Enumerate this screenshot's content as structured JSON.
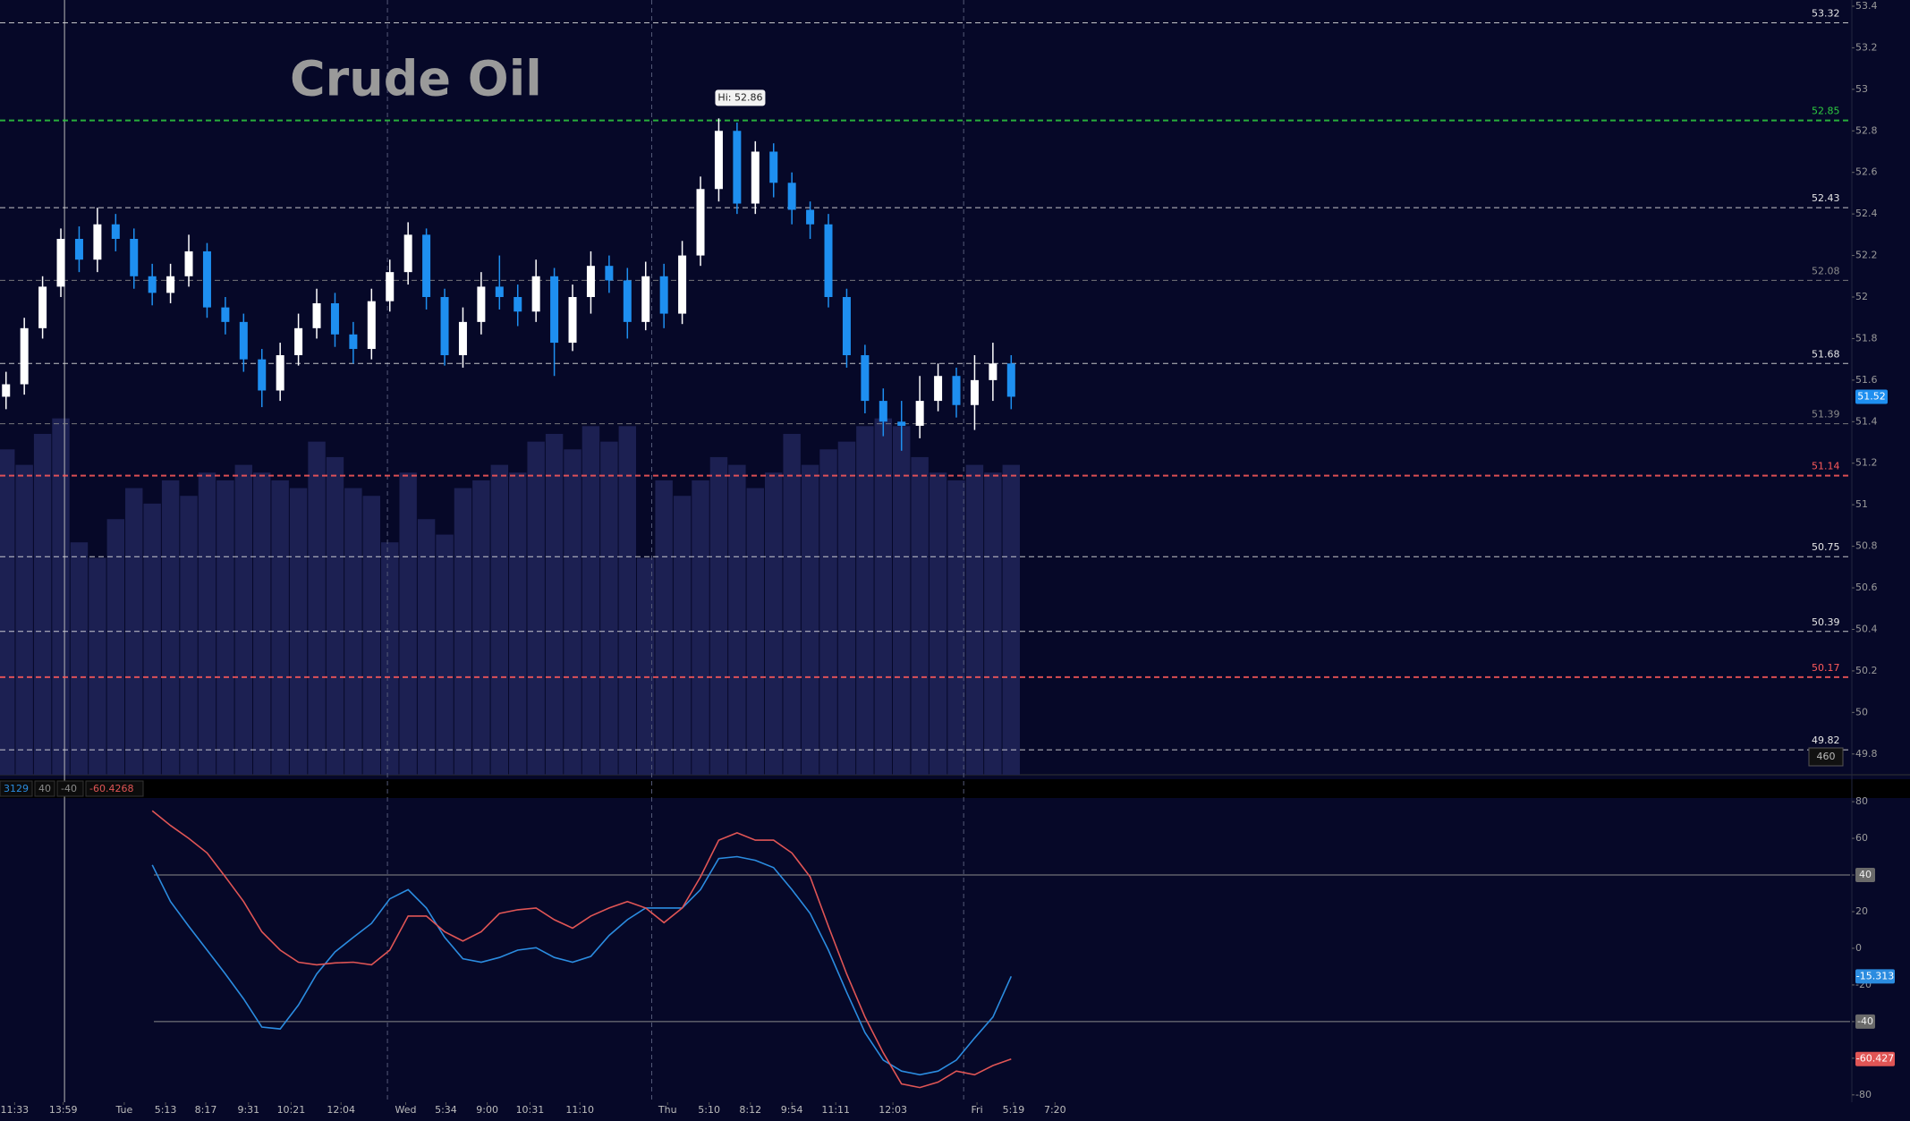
{
  "chart_data": [
    {
      "type": "candlestick",
      "title": "Crude Oil",
      "xlim": [
        -0.33,
        101
      ],
      "ylim": [
        49.7,
        53.43
      ],
      "yticks": [
        49.8,
        50,
        50.2,
        50.4,
        50.6,
        50.8,
        51,
        51.2,
        51.4,
        51.6,
        51.8,
        52,
        52.2,
        52.4,
        52.6,
        52.8,
        53,
        53.2,
        53.4
      ],
      "up_color": "#ffffff",
      "down_color": "#1e8ff0",
      "open": [
        51.52,
        51.58,
        51.85,
        52.05,
        52.28,
        52.18,
        52.35,
        52.28,
        52.1,
        52.02,
        52.1,
        52.22,
        51.95,
        51.88,
        51.7,
        51.55,
        51.72,
        51.85,
        51.97,
        51.82,
        51.75,
        51.98,
        52.12,
        52.3,
        52.0,
        51.72,
        51.88,
        52.05,
        52.0,
        51.93,
        52.1,
        51.78,
        52.0,
        52.15,
        52.08,
        51.88,
        52.1,
        51.92,
        52.2,
        52.52,
        52.8,
        52.45,
        52.7,
        52.55,
        52.42,
        52.35,
        52.0,
        51.72,
        51.5,
        51.4,
        51.38,
        51.5,
        51.62,
        51.48,
        51.6,
        51.68
      ],
      "high": [
        51.64,
        51.9,
        52.1,
        52.33,
        52.34,
        52.43,
        52.4,
        52.33,
        52.16,
        52.16,
        52.3,
        52.26,
        52.0,
        51.92,
        51.75,
        51.78,
        51.92,
        52.04,
        52.02,
        51.88,
        52.04,
        52.18,
        52.36,
        52.33,
        52.04,
        51.95,
        52.12,
        52.2,
        52.06,
        52.18,
        52.14,
        52.06,
        52.22,
        52.2,
        52.14,
        52.17,
        52.16,
        52.27,
        52.58,
        52.86,
        52.84,
        52.75,
        52.74,
        52.6,
        52.46,
        52.4,
        52.04,
        51.77,
        51.56,
        51.5,
        51.62,
        51.68,
        51.66,
        51.72,
        51.78,
        51.72
      ],
      "low": [
        51.46,
        51.53,
        51.8,
        52.0,
        52.12,
        52.12,
        52.22,
        52.04,
        51.96,
        51.97,
        52.05,
        51.9,
        51.82,
        51.64,
        51.47,
        51.5,
        51.67,
        51.8,
        51.76,
        51.68,
        51.7,
        51.93,
        52.06,
        51.94,
        51.67,
        51.66,
        51.82,
        51.94,
        51.86,
        51.88,
        51.62,
        51.74,
        51.92,
        52.02,
        51.8,
        51.84,
        51.85,
        51.87,
        52.15,
        52.46,
        52.4,
        52.4,
        52.48,
        52.35,
        52.28,
        51.95,
        51.66,
        51.44,
        51.33,
        51.26,
        51.32,
        51.45,
        51.42,
        51.36,
        51.5,
        51.46
      ],
      "close": [
        51.58,
        51.85,
        52.05,
        52.28,
        52.18,
        52.35,
        52.28,
        52.1,
        52.02,
        52.1,
        52.22,
        51.95,
        51.88,
        51.7,
        51.55,
        51.72,
        51.85,
        51.97,
        51.82,
        51.75,
        51.98,
        52.12,
        52.3,
        52.0,
        51.72,
        51.88,
        52.05,
        52.0,
        51.93,
        52.1,
        51.78,
        52.0,
        52.15,
        52.08,
        51.88,
        52.1,
        51.92,
        52.2,
        52.52,
        52.8,
        52.45,
        52.7,
        52.55,
        52.42,
        52.35,
        52.0,
        51.72,
        51.5,
        51.4,
        51.38,
        51.5,
        51.62,
        51.48,
        51.6,
        51.68,
        51.52
      ],
      "volume": {
        "color": "#1c2052",
        "ylim": [
          0,
          100
        ],
        "values": [
          42,
          40,
          44,
          46,
          30,
          28,
          33,
          37,
          35,
          38,
          36,
          39,
          38,
          40,
          39,
          38,
          37,
          43,
          41,
          37,
          36,
          30,
          39,
          33,
          31,
          37,
          38,
          40,
          39,
          43,
          44,
          42,
          45,
          43,
          45,
          28,
          38,
          36,
          38,
          41,
          40,
          37,
          39,
          44,
          40,
          42,
          43,
          45,
          46,
          45,
          41,
          39,
          38,
          40,
          39,
          40
        ]
      },
      "levels": [
        {
          "value": 53.32,
          "color": "#e6e6e6"
        },
        {
          "value": 52.85,
          "color": "#2ecc40"
        },
        {
          "value": 52.43,
          "color": "#e6e6e6"
        },
        {
          "value": 52.08,
          "color": "#8a8a8a"
        },
        {
          "value": 51.68,
          "color": "#e6e6e6"
        },
        {
          "value": 51.39,
          "color": "#8a8a8a"
        },
        {
          "value": 51.14,
          "color": "#ff5a5a"
        },
        {
          "value": 50.75,
          "color": "#e6e6e6"
        },
        {
          "value": 50.39,
          "color": "#e6e6e6"
        },
        {
          "value": 50.17,
          "color": "#ff5a5a"
        },
        {
          "value": 49.82,
          "color": "#e6e6e6"
        }
      ],
      "high_annotation": "Hi: 52.86",
      "volume_label": "460",
      "session_lines": [
        3.2,
        20.87,
        35.33,
        52.4
      ]
    },
    {
      "type": "line",
      "header": [
        "3129",
        "40",
        "-40",
        "-60.4268"
      ],
      "ylim": [
        -84,
        82
      ],
      "yticks": [
        -80,
        -60,
        -40,
        -20,
        0,
        20,
        40,
        60,
        80
      ],
      "reference_lines": [
        40,
        -40
      ],
      "xticks": [
        {
          "value": 0.47,
          "label": "11:33"
        },
        {
          "value": 3.13,
          "label": "13:59"
        },
        {
          "value": 6.47,
          "label": "Tue"
        },
        {
          "value": 8.73,
          "label": "5:13"
        },
        {
          "value": 10.93,
          "label": "8:17"
        },
        {
          "value": 13.27,
          "label": "9:31"
        },
        {
          "value": 15.6,
          "label": "10:21"
        },
        {
          "value": 18.33,
          "label": "12:04"
        },
        {
          "value": 21.87,
          "label": "Wed"
        },
        {
          "value": 24.07,
          "label": "5:34"
        },
        {
          "value": 26.33,
          "label": "9:00"
        },
        {
          "value": 28.67,
          "label": "10:31"
        },
        {
          "value": 31.4,
          "label": "11:10"
        },
        {
          "value": 36.2,
          "label": "Thu"
        },
        {
          "value": 38.47,
          "label": "5:10"
        },
        {
          "value": 40.73,
          "label": "8:12"
        },
        {
          "value": 43,
          "label": "9:54"
        },
        {
          "value": 45.4,
          "label": "11:11"
        },
        {
          "value": 48.53,
          "label": "12:03"
        },
        {
          "value": 53.13,
          "label": "Fri"
        },
        {
          "value": 55.13,
          "label": "5:19"
        },
        {
          "value": 57.4,
          "label": "7:20"
        }
      ],
      "series": [
        {
          "color": "#2b8ce0",
          "values": [
            null,
            null,
            null,
            null,
            null,
            null,
            null,
            null,
            45.5,
            25.5,
            12,
            -1,
            -14,
            -27.6,
            -43,
            -44,
            -31,
            -14,
            -2,
            6,
            13.6,
            27,
            32,
            22,
            6,
            -5.7,
            -7.6,
            -5,
            -1,
            0.3,
            -5,
            -7.6,
            -4.4,
            7,
            15.6,
            22,
            22,
            22,
            32,
            49,
            50,
            48,
            44,
            32,
            19,
            -1,
            -24,
            -46,
            -61,
            -67,
            -69,
            -67,
            -61,
            -49,
            -37.5,
            -15.313
          ]
        },
        {
          "color": "#e05555",
          "values": [
            null,
            null,
            null,
            null,
            null,
            null,
            null,
            null,
            75,
            67,
            60,
            52,
            39,
            25.5,
            9,
            -1,
            -7.6,
            -9,
            -8,
            -7.6,
            -9,
            -1,
            17.6,
            17.6,
            9,
            4,
            9,
            19,
            21,
            22,
            15.6,
            11,
            17.6,
            22,
            25.5,
            22,
            14,
            22,
            39,
            59,
            63,
            59,
            59,
            52,
            39,
            12,
            -14,
            -37.5,
            -57,
            -74,
            -76,
            -73,
            -67,
            -69,
            -64,
            -60.427
          ]
        }
      ]
    }
  ]
}
